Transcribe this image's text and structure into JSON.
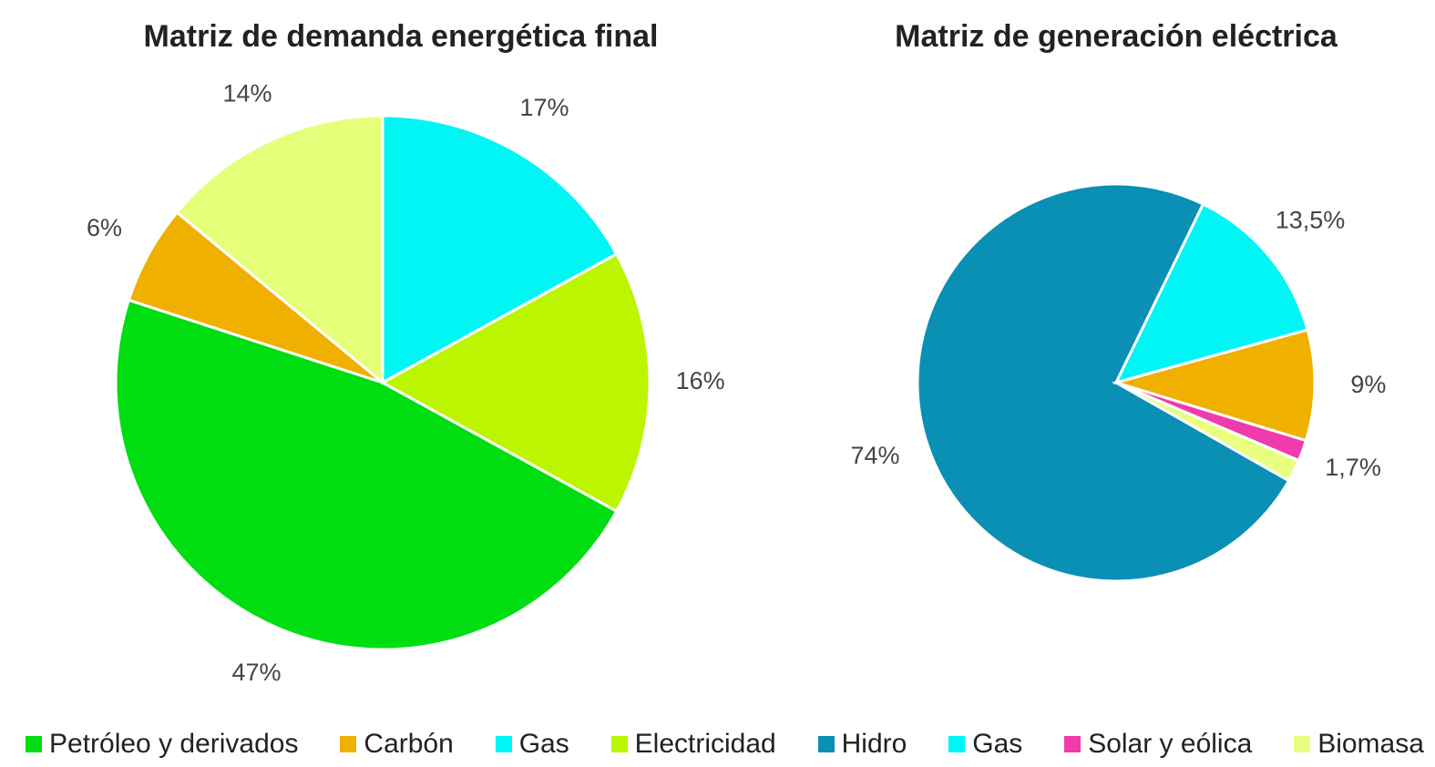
{
  "chart_data": [
    {
      "type": "pie",
      "title": "Matriz de demanda energética final",
      "categories": [
        "Petróleo y derivados",
        "Carbón",
        null,
        "Gas",
        "Electricidad"
      ],
      "values": [
        47,
        6,
        14,
        17,
        16
      ],
      "value_labels": [
        "47%",
        "6%",
        "14%",
        "17%",
        "16%"
      ],
      "colors": [
        "#00dd11",
        "#f0b000",
        "#e6ff7a",
        "#00f5f5",
        "#bbf500"
      ]
    },
    {
      "type": "pie",
      "title": "Matriz de generación eléctrica",
      "categories": [
        "Hidro",
        "Gas",
        null,
        "Solar y eólica",
        "Biomasa"
      ],
      "values": [
        74,
        13.5,
        9,
        1.7,
        1.8
      ],
      "value_labels": [
        "74%",
        "13,5%",
        "9%",
        "1,7%",
        null
      ],
      "colors": [
        "#0a8fb5",
        "#00f5f5",
        "#f0b000",
        "#f03caa",
        "#e8ff80"
      ]
    }
  ]
}
